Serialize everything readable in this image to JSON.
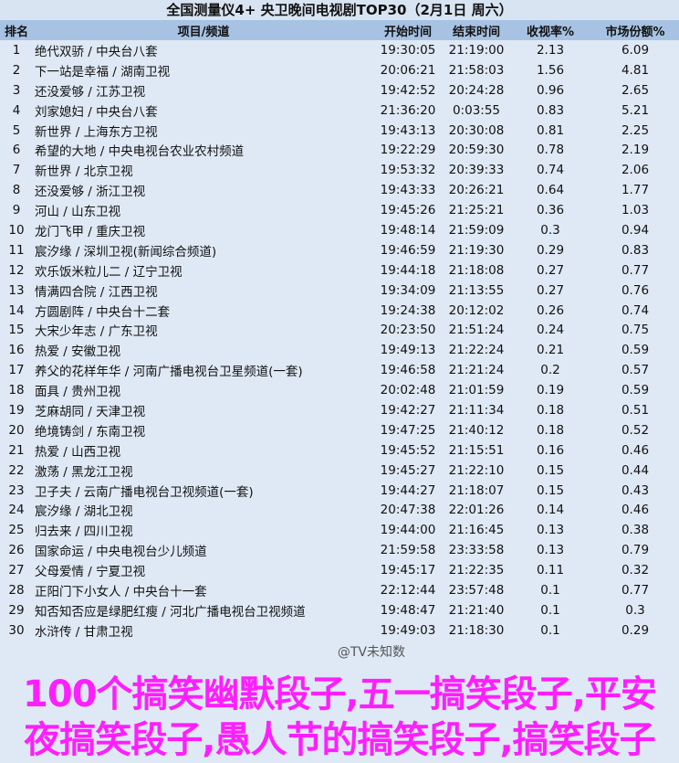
{
  "title": "全国测量仪4+ 央卫晚间电视剧TOP30（2月1日 周六）",
  "headers": [
    "排名",
    "项目/频道",
    "开始时间",
    "结束时间",
    "收视率%",
    "市场份额%"
  ],
  "rows": [
    [
      "1",
      "绝代双骄 / 中央台八套",
      "19:30:05",
      "21:19:00",
      "2.13",
      "6.09"
    ],
    [
      "2",
      "下一站是幸福 / 湖南卫视",
      "20:06:21",
      "21:58:03",
      "1.56",
      "4.81"
    ],
    [
      "3",
      "还没爱够 / 江苏卫视",
      "19:42:52",
      "20:24:28",
      "0.96",
      "2.65"
    ],
    [
      "4",
      "刘家媳妇 / 中央台八套",
      "21:36:20",
      "0:03:55",
      "0.83",
      "5.21"
    ],
    [
      "5",
      "新世界 / 上海东方卫视",
      "19:43:13",
      "20:30:08",
      "0.81",
      "2.25"
    ],
    [
      "6",
      "希望的大地 / 中央电视台农业农村频道",
      "19:22:29",
      "20:59:30",
      "0.78",
      "2.19"
    ],
    [
      "7",
      "新世界 / 北京卫视",
      "19:53:32",
      "20:39:33",
      "0.74",
      "2.06"
    ],
    [
      "8",
      "还没爱够 / 浙江卫视",
      "19:43:33",
      "20:26:21",
      "0.64",
      "1.77"
    ],
    [
      "9",
      "河山 / 山东卫视",
      "19:45:26",
      "21:25:21",
      "0.36",
      "1.03"
    ],
    [
      "10",
      "龙门飞甲 / 重庆卫视",
      "19:48:14",
      "21:59:09",
      "0.3",
      "0.94"
    ],
    [
      "11",
      "宸汐缘 / 深圳卫视(新闻综合频道)",
      "19:46:59",
      "21:19:30",
      "0.29",
      "0.83"
    ],
    [
      "12",
      "欢乐饭米粒儿二 / 辽宁卫视",
      "19:44:18",
      "21:18:08",
      "0.27",
      "0.77"
    ],
    [
      "13",
      "情满四合院 / 江西卫视",
      "19:34:09",
      "21:13:55",
      "0.27",
      "0.76"
    ],
    [
      "14",
      "方圆剧阵 / 中央台十二套",
      "19:24:38",
      "20:12:02",
      "0.26",
      "0.74"
    ],
    [
      "15",
      "大宋少年志 / 广东卫视",
      "20:23:50",
      "21:51:24",
      "0.24",
      "0.75"
    ],
    [
      "16",
      "热爱 / 安徽卫视",
      "19:49:13",
      "21:22:24",
      "0.21",
      "0.59"
    ],
    [
      "17",
      "养父的花样年华 / 河南广播电视台卫星频道(一套)",
      "19:46:58",
      "21:21:24",
      "0.2",
      "0.57"
    ],
    [
      "18",
      "面具 / 贵州卫视",
      "20:02:48",
      "21:01:59",
      "0.19",
      "0.59"
    ],
    [
      "19",
      "芝麻胡同 / 天津卫视",
      "19:42:27",
      "21:11:34",
      "0.18",
      "0.51"
    ],
    [
      "20",
      "绝境铸剑 / 东南卫视",
      "19:47:25",
      "21:40:12",
      "0.18",
      "0.52"
    ],
    [
      "21",
      "热爱 / 山西卫视",
      "19:45:52",
      "21:15:51",
      "0.16",
      "0.46"
    ],
    [
      "22",
      "激荡 / 黑龙江卫视",
      "19:45:27",
      "21:22:10",
      "0.15",
      "0.44"
    ],
    [
      "23",
      "卫子夫 / 云南广播电视台卫视频道(一套)",
      "19:44:27",
      "21:18:07",
      "0.15",
      "0.43"
    ],
    [
      "24",
      "宸汐缘 / 湖北卫视",
      "20:47:38",
      "22:01:26",
      "0.14",
      "0.46"
    ],
    [
      "25",
      "归去来 / 四川卫视",
      "19:44:00",
      "21:16:45",
      "0.13",
      "0.38"
    ],
    [
      "26",
      "国家命运 / 中央电视台少儿频道",
      "21:59:58",
      "23:33:58",
      "0.13",
      "0.79"
    ],
    [
      "27",
      "父母爱情 / 宁夏卫视",
      "19:45:17",
      "21:22:35",
      "0.11",
      "0.32"
    ],
    [
      "28",
      "正阳门下小女人 / 中央台十一套",
      "22:12:44",
      "23:57:48",
      "0.1",
      "0.77"
    ],
    [
      "29",
      "知否知否应是绿肥红瘦 / 河北广播电视台卫视频道",
      "19:48:47",
      "21:21:40",
      "0.1",
      "0.3"
    ],
    [
      "30",
      "水浒传 / 甘肃卫视",
      "19:49:03",
      "21:18:30",
      "0.1",
      "0.29"
    ]
  ],
  "overlay_text": "100个搞笑幽默段子,五一搞笑段子,平安夜搞笑段子,愚人节的搞笑段子,搞笑段子",
  "watermark": "@TV未知数"
}
